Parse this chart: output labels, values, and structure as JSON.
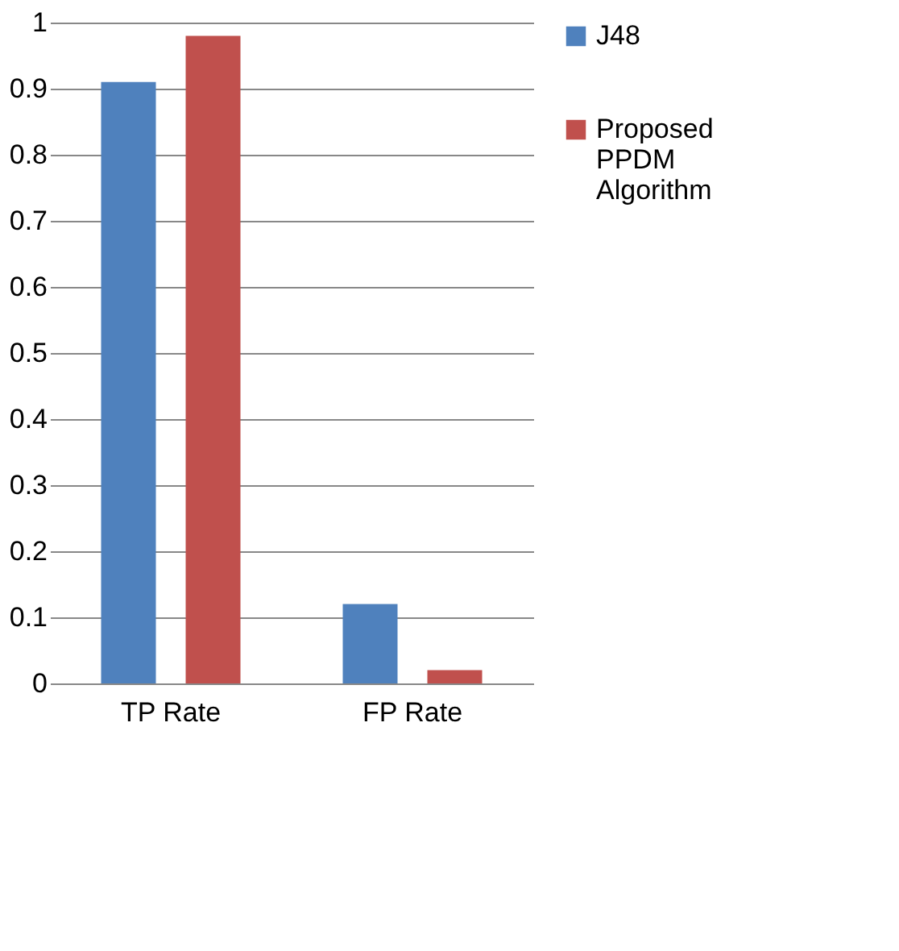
{
  "chart_data": {
    "type": "bar",
    "categories": [
      "TP Rate",
      "FP Rate"
    ],
    "series": [
      {
        "name": "J48",
        "color": "#4f81bd",
        "values": [
          0.91,
          0.12
        ]
      },
      {
        "name": "Proposed PPDM Algorithm",
        "color": "#c0504d",
        "values": [
          0.98,
          0.02
        ]
      }
    ],
    "ylim": [
      0,
      1
    ],
    "yticks": [
      0,
      0.1,
      0.2,
      0.3,
      0.4,
      0.5,
      0.6,
      0.7,
      0.8,
      0.9,
      1
    ],
    "grid": "y",
    "legend": "right"
  }
}
